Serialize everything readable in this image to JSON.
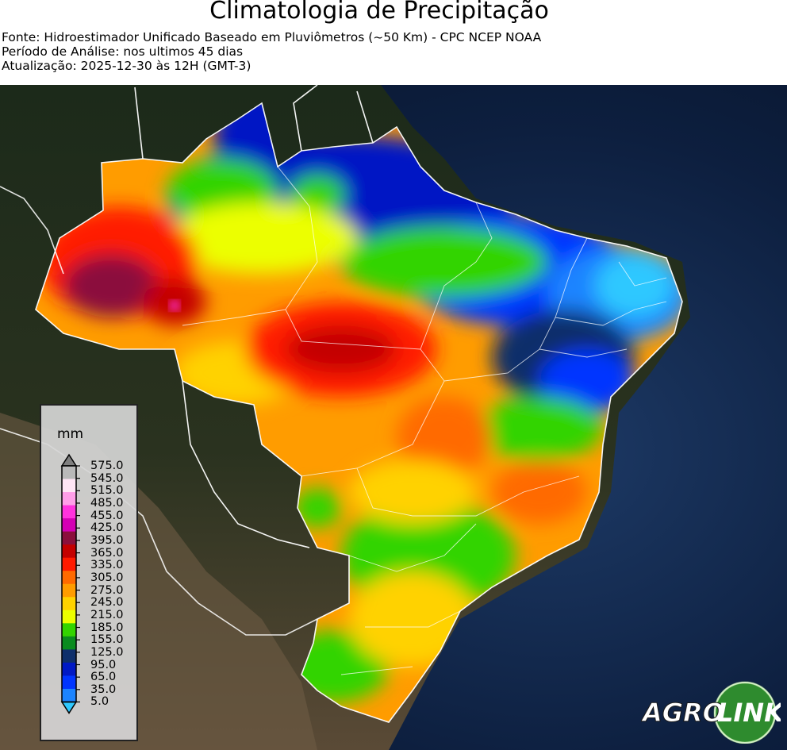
{
  "header": {
    "title": "Climatologia de Precipitação",
    "source": "Fonte: Hidroestimador Unificado Baseado em Pluviômetros (~50 Km) - CPC NCEP NOAA",
    "period": "Período de Análise: nos ultimos 45 dias",
    "updated": "Atualização: 2025-12-30 às 12H (GMT-3)"
  },
  "legend": {
    "unit": "mm",
    "ticks": [
      "575.0",
      "545.0",
      "515.0",
      "485.0",
      "455.0",
      "425.0",
      "395.0",
      "365.0",
      "335.0",
      "305.0",
      "275.0",
      "245.0",
      "215.0",
      "185.0",
      "155.0",
      "125.0",
      "95.0",
      "65.0",
      "35.0",
      "5.0"
    ],
    "colors_top_to_bottom": [
      "#7f7f7f",
      "#b9b9b9",
      "#ffe5f5",
      "#ff9ee8",
      "#ff33dd",
      "#d400b4",
      "#8b0f3c",
      "#c40000",
      "#ff1a00",
      "#ff6a00",
      "#ff9c00",
      "#ffd200",
      "#ecff00",
      "#33d400",
      "#0a8b1f",
      "#0e2f6b",
      "#0019c4",
      "#0035ff",
      "#1c84ff",
      "#2fc8ff"
    ]
  },
  "logo": {
    "text_left": "AGRO",
    "text_right": "LINK",
    "accent_color": "#2e8b2e"
  }
}
